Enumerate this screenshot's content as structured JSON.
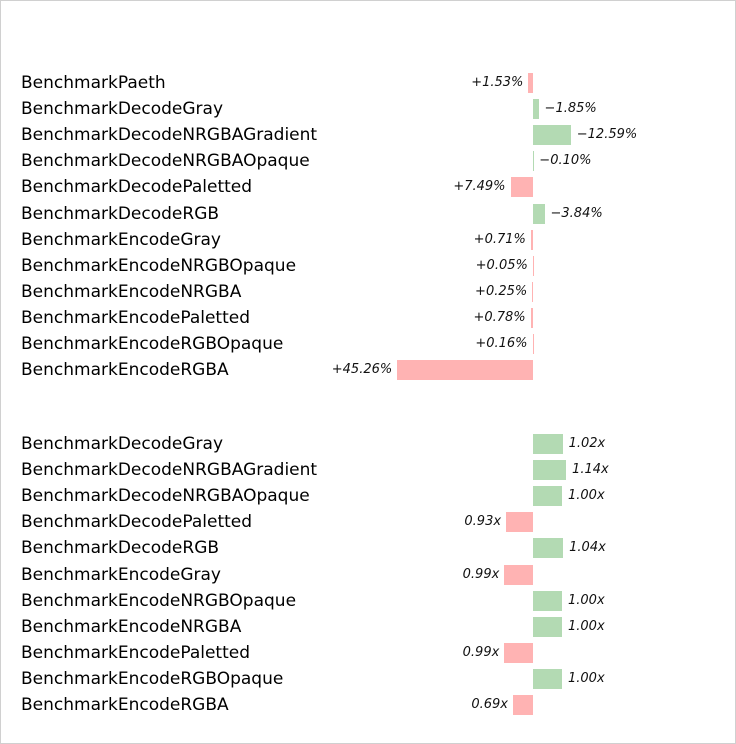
{
  "colors": {
    "slower": "#ffb3b3",
    "faster": "#b3dab3"
  },
  "chart_data": [
    {
      "type": "bar",
      "title": "",
      "orientation": "horizontal",
      "unit": "percent change",
      "categories": [
        "BenchmarkPaeth",
        "BenchmarkDecodeGray",
        "BenchmarkDecodeNRGBAGradient",
        "BenchmarkDecodeNRGBAOpaque",
        "BenchmarkDecodePaletted",
        "BenchmarkDecodeRGB",
        "BenchmarkEncodeGray",
        "BenchmarkEncodeNRGBOpaque",
        "BenchmarkEncodeNRGBA",
        "BenchmarkEncodePaletted",
        "BenchmarkEncodeRGBOpaque",
        "BenchmarkEncodeRGBA"
      ],
      "values": [
        1.53,
        -1.85,
        -12.59,
        -0.1,
        7.49,
        -3.84,
        0.71,
        0.05,
        0.25,
        0.78,
        0.16,
        45.26
      ],
      "labels": [
        "+1.53%",
        "−1.85%",
        "−12.59%",
        "−0.10%",
        "+7.49%",
        "−3.84%",
        "+0.71%",
        "+0.05%",
        "+0.25%",
        "+0.78%",
        "+0.16%",
        "+45.26%"
      ]
    },
    {
      "type": "bar",
      "title": "",
      "orientation": "horizontal",
      "unit": "speedup ratio",
      "categories": [
        "BenchmarkDecodeGray",
        "BenchmarkDecodeNRGBAGradient",
        "BenchmarkDecodeNRGBAOpaque",
        "BenchmarkDecodePaletted",
        "BenchmarkDecodeRGB",
        "BenchmarkEncodeGray",
        "BenchmarkEncodeNRGBOpaque",
        "BenchmarkEncodeNRGBA",
        "BenchmarkEncodePaletted",
        "BenchmarkEncodeRGBOpaque",
        "BenchmarkEncodeRGBA"
      ],
      "values": [
        1.02,
        1.14,
        1.0,
        0.93,
        1.04,
        0.99,
        1.0,
        1.0,
        0.99,
        1.0,
        0.69
      ],
      "labels": [
        "1.02x",
        "1.14x",
        "1.00x",
        "0.93x",
        "1.04x",
        "0.99x",
        "1.00x",
        "1.00x",
        "0.99x",
        "1.00x",
        "0.69x"
      ]
    }
  ]
}
